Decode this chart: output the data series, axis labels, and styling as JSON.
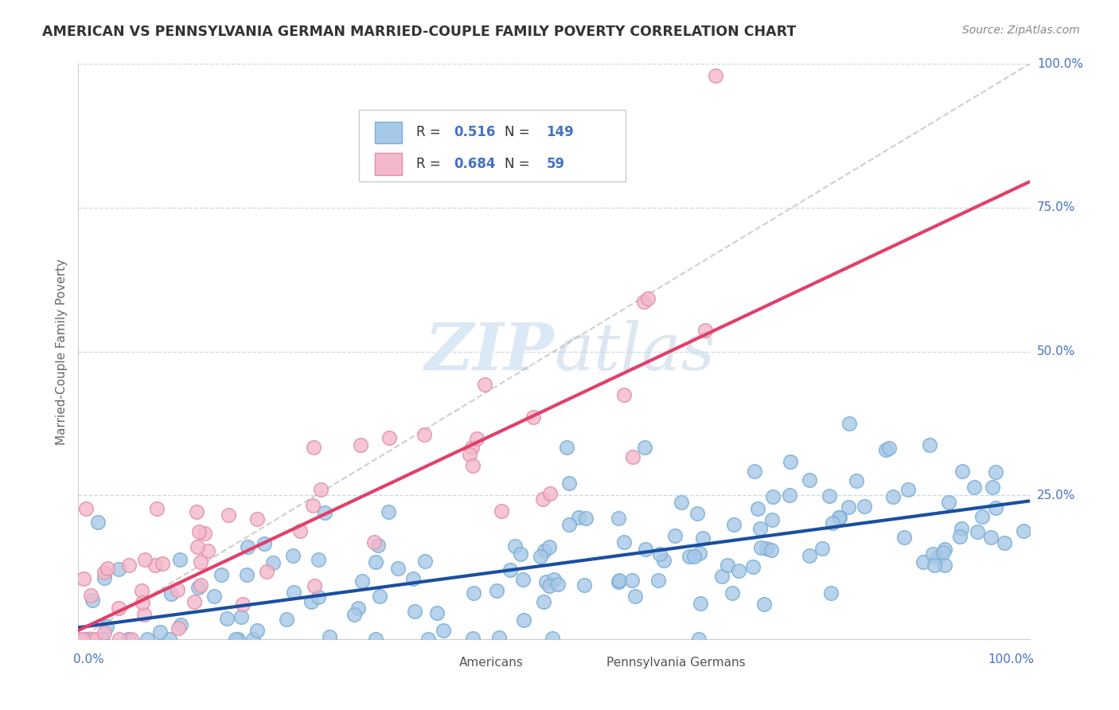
{
  "title": "AMERICAN VS PENNSYLVANIA GERMAN MARRIED-COUPLE FAMILY POVERTY CORRELATION CHART",
  "source": "Source: ZipAtlas.com",
  "ylabel": "Married-Couple Family Poverty",
  "R_american": 0.516,
  "N_american": 149,
  "R_pg": 0.684,
  "N_pg": 59,
  "american_color": "#a8c8e8",
  "american_edge_color": "#7aaed4",
  "pg_color": "#f4b8cc",
  "pg_edge_color": "#e090a8",
  "american_line_color": "#1a4fa0",
  "pg_line_color": "#e0406a",
  "watermark_color": "#d0dff0",
  "background_color": "#ffffff",
  "grid_color": "#c8d8ec",
  "title_color": "#333333",
  "source_color": "#888888",
  "axis_label_color": "#4472c4",
  "ylabel_color": "#666666",
  "legend_text_color": "#333333",
  "bottom_legend_text_color": "#555555",
  "am_slope": 0.22,
  "am_intercept": 2.0,
  "pg_slope": 0.78,
  "pg_intercept": 1.5
}
